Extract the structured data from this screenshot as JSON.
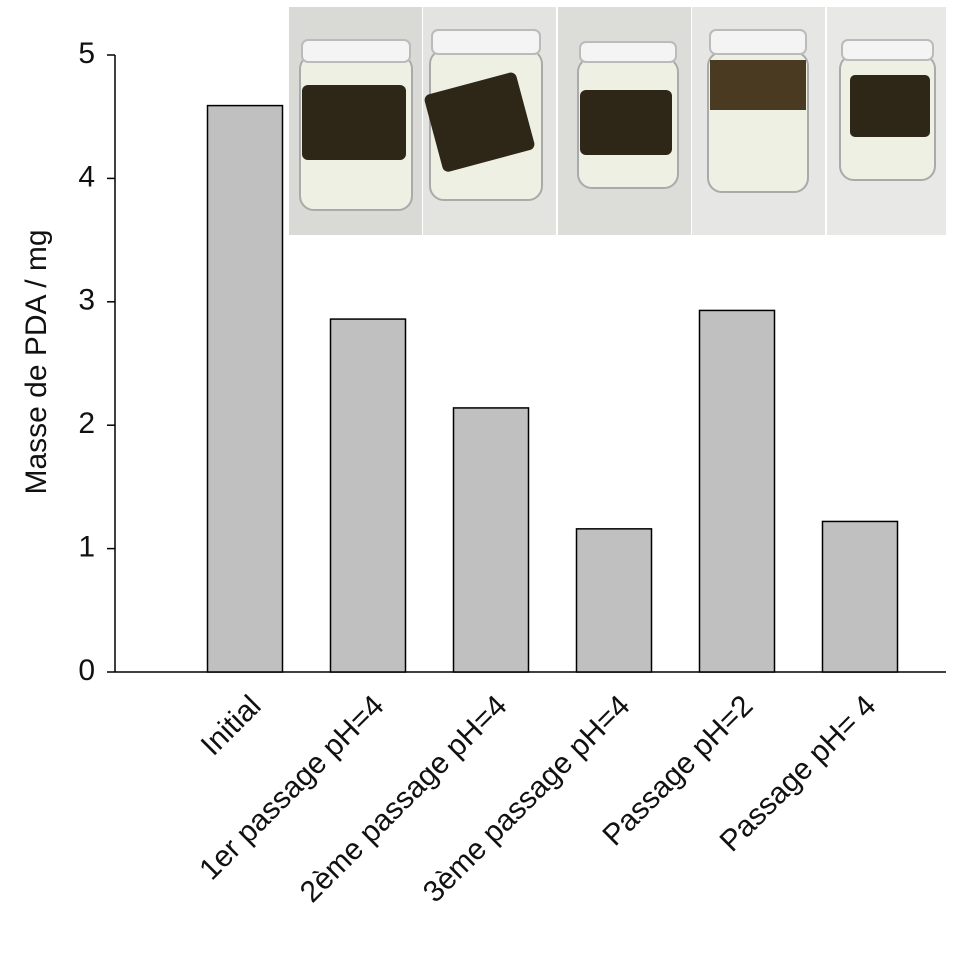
{
  "chart_data": {
    "type": "bar",
    "y_label": "Masse de PDA / mg",
    "categories": [
      "Initial",
      "1er passage pH=4",
      "2ème passage pH=4",
      "3ème passage pH=4",
      "Passage pH=2",
      "Passage pH= 4"
    ],
    "values": [
      4.59,
      2.86,
      2.14,
      1.16,
      2.93,
      1.22
    ],
    "color": "#c0c0c0",
    "ylim": [
      0,
      5
    ],
    "yticks": [
      0,
      1,
      2,
      3,
      4,
      5
    ],
    "grid": false
  }
}
